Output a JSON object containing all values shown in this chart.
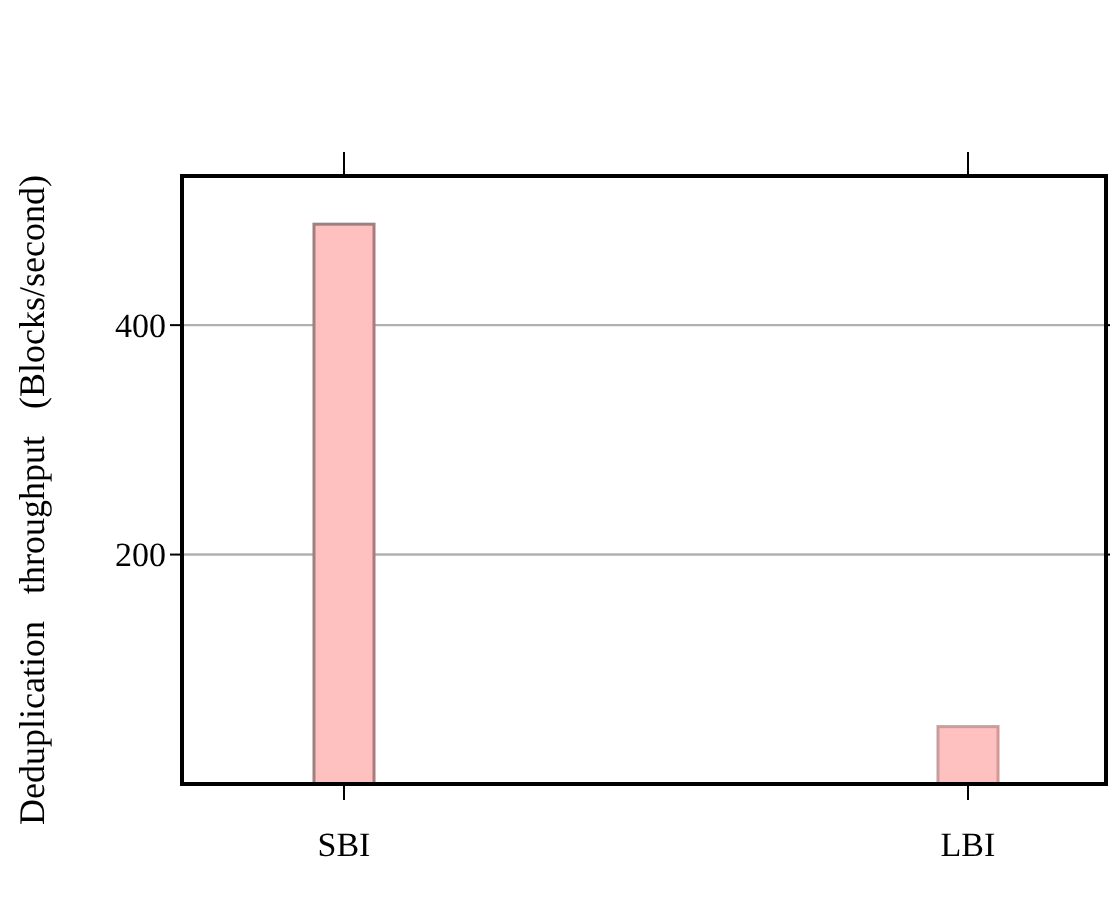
{
  "chart_data": {
    "type": "bar",
    "ylabel": "Deduplication   throughput   (Blocks/second)",
    "categories": [
      "SBI",
      "LBI"
    ],
    "values": [
      488,
      50
    ],
    "colors": [
      "#ffc0c0",
      "#ffc0c0"
    ],
    "ylim": [
      0,
      530
    ],
    "yticks": [
      200,
      400
    ],
    "grid": "y"
  }
}
